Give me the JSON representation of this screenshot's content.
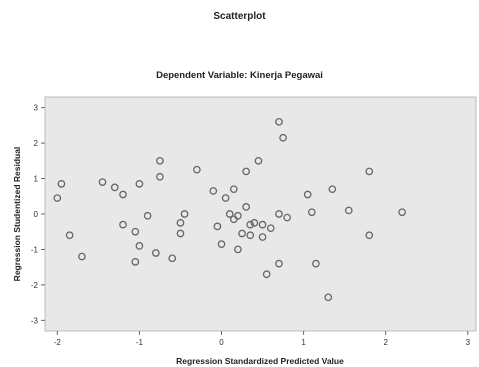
{
  "chart_data": {
    "type": "scatter",
    "title": "Scatterplot",
    "subtitle": "Dependent Variable: Kinerja Pegawai",
    "xlabel": "Regression Standardized Predicted Value",
    "ylabel": "Regression Studentized Residual",
    "xlim": [
      -2.15,
      3.1
    ],
    "ylim": [
      -3.3,
      3.3
    ],
    "xticks": [
      -2,
      -1,
      0,
      1,
      2,
      3
    ],
    "yticks": [
      -3,
      -2,
      -1,
      0,
      1,
      2,
      3
    ],
    "grid": false,
    "background": "#e8e8e8",
    "marker_color": "#666666",
    "points": [
      [
        -1.95,
        0.85
      ],
      [
        -2.0,
        0.45
      ],
      [
        -1.85,
        -0.6
      ],
      [
        -1.7,
        -1.2
      ],
      [
        -1.45,
        0.9
      ],
      [
        -1.3,
        0.75
      ],
      [
        -1.2,
        0.55
      ],
      [
        -1.0,
        0.85
      ],
      [
        -1.2,
        -0.3
      ],
      [
        -1.05,
        -0.5
      ],
      [
        -1.0,
        -0.9
      ],
      [
        -0.9,
        -0.05
      ],
      [
        -0.8,
        -1.1
      ],
      [
        -1.05,
        -1.35
      ],
      [
        -0.75,
        1.05
      ],
      [
        -0.75,
        1.5
      ],
      [
        -0.6,
        -1.25
      ],
      [
        -0.5,
        -0.25
      ],
      [
        -0.5,
        -0.55
      ],
      [
        -0.45,
        0.0
      ],
      [
        -0.3,
        1.25
      ],
      [
        -0.1,
        0.65
      ],
      [
        -0.05,
        -0.35
      ],
      [
        0.05,
        0.45
      ],
      [
        0.1,
        0.0
      ],
      [
        0.0,
        -0.85
      ],
      [
        0.15,
        -0.15
      ],
      [
        0.2,
        -0.05
      ],
      [
        0.3,
        0.2
      ],
      [
        0.25,
        -0.55
      ],
      [
        0.35,
        -0.6
      ],
      [
        0.4,
        -0.25
      ],
      [
        0.15,
        0.7
      ],
      [
        0.2,
        -1.0
      ],
      [
        0.3,
        1.2
      ],
      [
        0.45,
        1.5
      ],
      [
        0.35,
        -0.3
      ],
      [
        0.5,
        -0.3
      ],
      [
        0.5,
        -0.65
      ],
      [
        0.55,
        -1.7
      ],
      [
        0.6,
        -0.4
      ],
      [
        0.7,
        0.0
      ],
      [
        0.7,
        -1.4
      ],
      [
        0.7,
        2.6
      ],
      [
        0.75,
        2.15
      ],
      [
        0.8,
        -0.1
      ],
      [
        1.05,
        0.55
      ],
      [
        1.1,
        0.05
      ],
      [
        1.15,
        -1.4
      ],
      [
        1.3,
        -2.35
      ],
      [
        1.35,
        0.7
      ],
      [
        1.55,
        0.1
      ],
      [
        1.8,
        1.2
      ],
      [
        1.8,
        -0.6
      ],
      [
        2.2,
        0.05
      ]
    ]
  }
}
